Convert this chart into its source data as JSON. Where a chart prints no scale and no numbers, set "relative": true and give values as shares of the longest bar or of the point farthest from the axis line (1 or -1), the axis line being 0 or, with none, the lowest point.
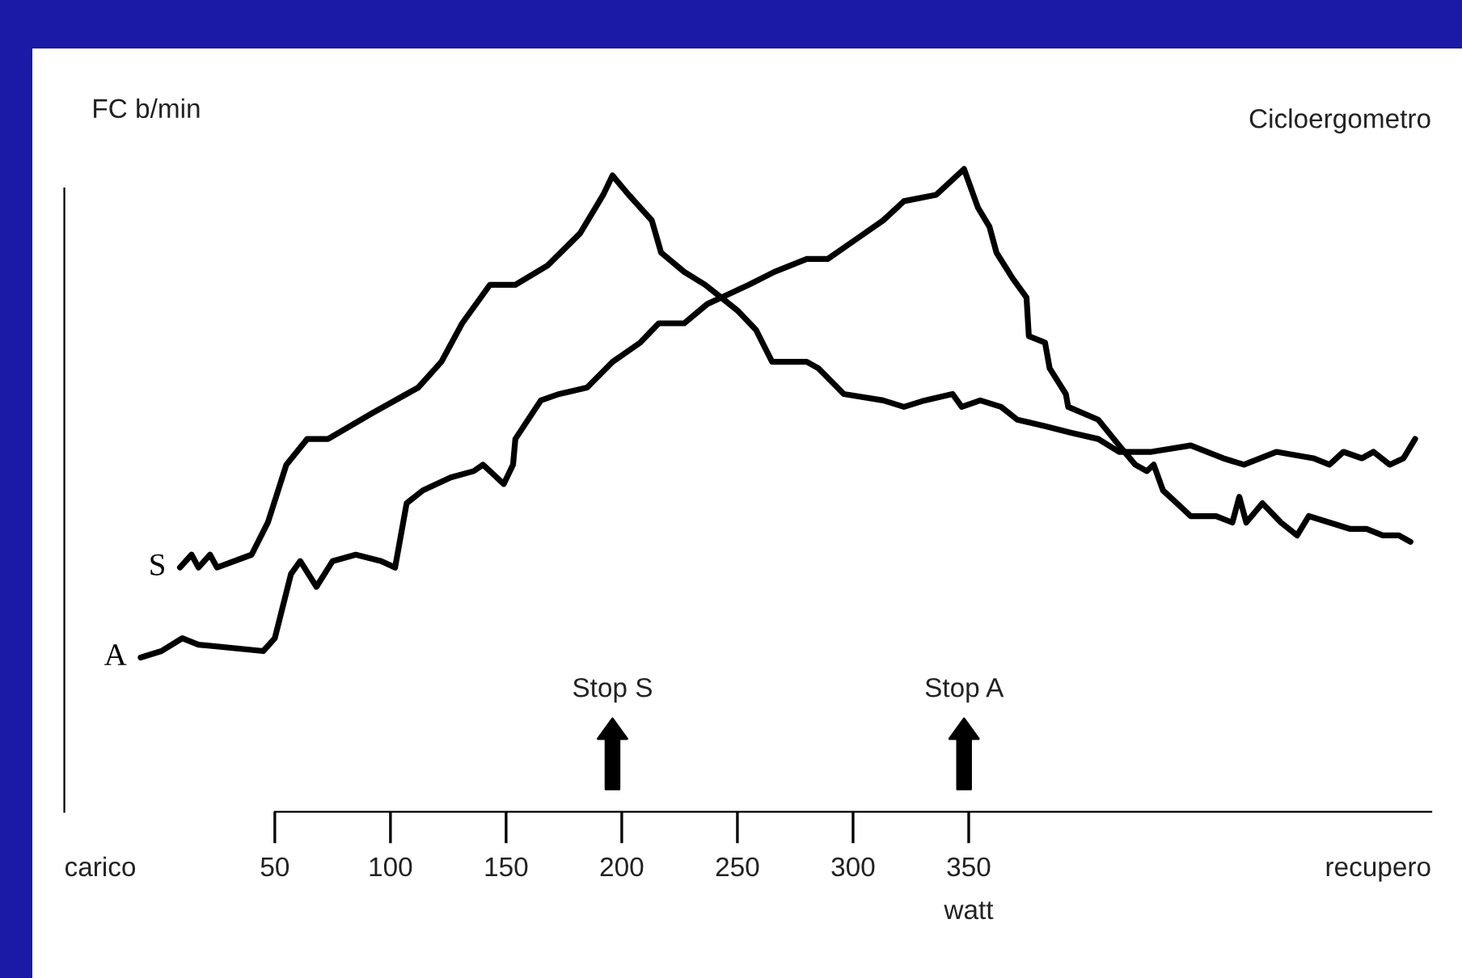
{
  "chart_data": {
    "type": "line",
    "title": "Cicloergometro",
    "ylabel": "FC b/min",
    "xlabel": "watt",
    "relative": true,
    "xlim": [
      -41,
      550
    ],
    "xticks": [
      50,
      100,
      150,
      200,
      250,
      300,
      350
    ],
    "annotations": [
      "carico",
      "recupero",
      "Stop S",
      "Stop A"
    ],
    "series": [
      {
        "name": "S",
        "color": "#000000",
        "x": [
          9,
          14,
          17,
          22,
          25,
          40,
          47,
          55,
          64,
          73,
          92,
          112,
          122,
          131,
          143,
          154,
          168,
          182,
          192,
          196,
          203,
          213,
          217,
          227,
          236,
          243,
          250,
          258,
          265,
          280,
          285,
          296,
          313,
          322,
          331,
          343,
          347,
          355,
          364,
          371,
          383,
          394,
          406,
          415,
          429,
          446,
          460,
          469,
          483,
          499,
          506,
          512,
          520,
          525,
          532,
          538,
          543
        ],
        "values": [
          0.38,
          0.4,
          0.38,
          0.4,
          0.38,
          0.4,
          0.45,
          0.54,
          0.58,
          0.58,
          0.62,
          0.66,
          0.7,
          0.76,
          0.82,
          0.82,
          0.85,
          0.9,
          0.96,
          0.99,
          0.96,
          0.92,
          0.87,
          0.84,
          0.82,
          0.8,
          0.78,
          0.75,
          0.7,
          0.7,
          0.69,
          0.65,
          0.64,
          0.63,
          0.64,
          0.65,
          0.63,
          0.64,
          0.63,
          0.61,
          0.6,
          0.59,
          0.58,
          0.56,
          0.56,
          0.57,
          0.55,
          0.54,
          0.56,
          0.55,
          0.54,
          0.56,
          0.55,
          0.56,
          0.54,
          0.55,
          0.58
        ]
      },
      {
        "name": "A",
        "color": "#000000",
        "x": [
          -8,
          1,
          10,
          17,
          45,
          50,
          57,
          61,
          68,
          75,
          85,
          96,
          102,
          107,
          114,
          126,
          136,
          140,
          149,
          153,
          154,
          165,
          173,
          185,
          196,
          208,
          216,
          227,
          237,
          243,
          255,
          266,
          280,
          289,
          301,
          313,
          322,
          336,
          348,
          354,
          359,
          362,
          369,
          375,
          376,
          383,
          385,
          392,
          393,
          406,
          415,
          422,
          427,
          430,
          434,
          440,
          446,
          457,
          464,
          467,
          470,
          477,
          485,
          492,
          497,
          506,
          515,
          522,
          529,
          536,
          541
        ],
        "values": [
          0.24,
          0.25,
          0.27,
          0.26,
          0.25,
          0.27,
          0.37,
          0.39,
          0.35,
          0.39,
          0.4,
          0.39,
          0.38,
          0.48,
          0.5,
          0.52,
          0.53,
          0.54,
          0.51,
          0.54,
          0.58,
          0.64,
          0.65,
          0.66,
          0.7,
          0.73,
          0.76,
          0.76,
          0.79,
          0.8,
          0.82,
          0.84,
          0.86,
          0.86,
          0.89,
          0.92,
          0.95,
          0.96,
          1.0,
          0.94,
          0.91,
          0.87,
          0.83,
          0.8,
          0.74,
          0.73,
          0.69,
          0.65,
          0.63,
          0.61,
          0.57,
          0.54,
          0.53,
          0.54,
          0.5,
          0.48,
          0.46,
          0.46,
          0.45,
          0.49,
          0.45,
          0.48,
          0.45,
          0.43,
          0.46,
          0.45,
          0.44,
          0.44,
          0.43,
          0.43,
          0.42
        ]
      }
    ]
  }
}
